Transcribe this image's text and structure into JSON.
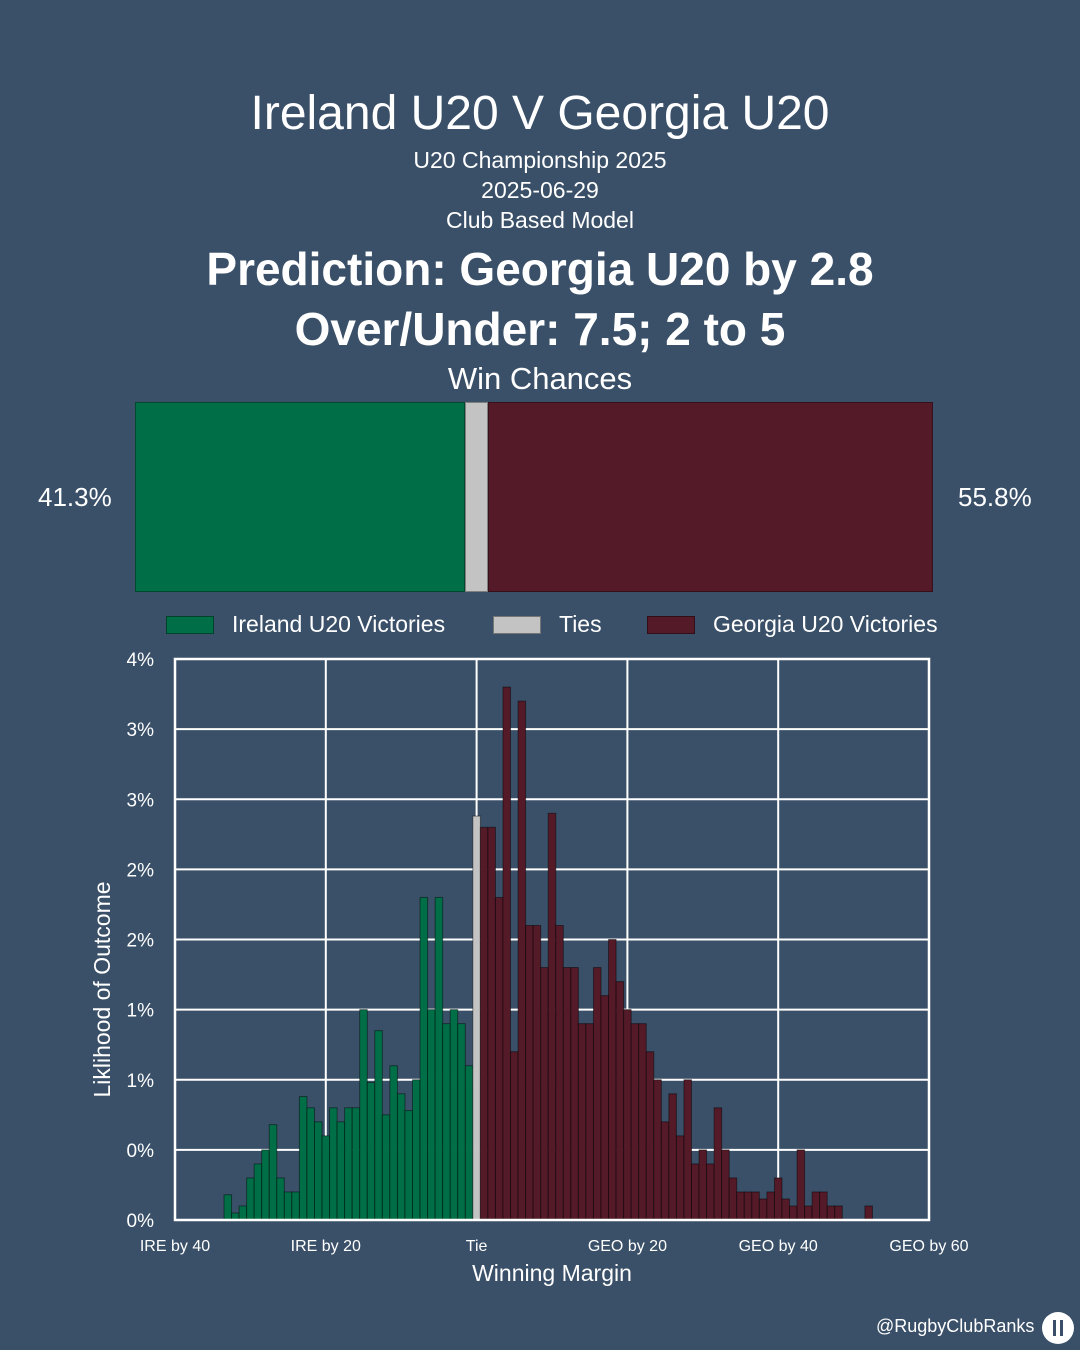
{
  "header": {
    "title": "Ireland U20 V Georgia U20",
    "competition": "U20 Championship 2025",
    "date": "2025-06-29",
    "model": "Club Based Model",
    "prediction": "Prediction: Georgia U20 by 2.8",
    "over_under": "Over/Under: 7.5; 2 to 5"
  },
  "win_chances": {
    "title": "Win Chances",
    "ireland_pct_label": "41.3%",
    "georgia_pct_label": "55.8%",
    "ireland": 41.3,
    "tie": 2.9,
    "georgia": 55.8
  },
  "legend": {
    "ireland": "Ireland U20 Victories",
    "tie": "Ties",
    "georgia": "Georgia U20 Victories"
  },
  "colors": {
    "background": "#3a5068",
    "ireland": "#006f47",
    "tie": "#c3c3c3",
    "georgia": "#541a28",
    "grid": "#ffffff"
  },
  "chart_data": {
    "type": "bar",
    "xlabel": "Winning Margin",
    "ylabel": "Liklihood of Outcome",
    "xlim": [
      -40,
      60
    ],
    "ylim": [
      0,
      4
    ],
    "x_ticks": [
      -40,
      -20,
      0,
      20,
      40,
      60
    ],
    "x_tick_labels": [
      "IRE by 40",
      "IRE by 20",
      "Tie",
      "GEO by 20",
      "GEO by 40",
      "GEO by 60"
    ],
    "y_ticks": [
      0,
      0.5,
      1,
      1.5,
      2,
      2.5,
      3,
      3.5,
      4
    ],
    "y_tick_labels": [
      "0%",
      "0%",
      "1%",
      "1%",
      "2%",
      "2%",
      "3%",
      "3%",
      "4%"
    ],
    "grid": true,
    "legend_position": "top",
    "series": [
      {
        "name": "Ireland U20 Victories",
        "x": [
          -33,
          -32,
          -31,
          -30,
          -29,
          -28,
          -27,
          -26,
          -25,
          -24,
          -23,
          -22,
          -21,
          -20,
          -19,
          -18,
          -17,
          -16,
          -15,
          -14,
          -13,
          -12,
          -11,
          -10,
          -9,
          -8,
          -7,
          -6,
          -5,
          -4,
          -3,
          -2,
          -1
        ],
        "values": [
          0.18,
          0.05,
          0.1,
          0.3,
          0.4,
          0.5,
          0.68,
          0.3,
          0.2,
          0.2,
          0.88,
          0.8,
          0.7,
          0.6,
          0.8,
          0.7,
          0.8,
          0.8,
          1.5,
          0.98,
          1.35,
          0.75,
          1.1,
          0.9,
          0.78,
          1.0,
          2.3,
          1.5,
          2.3,
          1.4,
          1.5,
          1.4,
          1.1
        ]
      },
      {
        "name": "Ties",
        "x": [
          0
        ],
        "values": [
          2.88
        ]
      },
      {
        "name": "Georgia U20 Victories",
        "x": [
          1,
          2,
          3,
          4,
          5,
          6,
          7,
          8,
          9,
          10,
          11,
          12,
          13,
          14,
          15,
          16,
          17,
          18,
          19,
          20,
          21,
          22,
          23,
          24,
          25,
          26,
          27,
          28,
          29,
          30,
          31,
          32,
          33,
          34,
          35,
          36,
          37,
          38,
          39,
          40,
          41,
          42,
          43,
          44,
          45,
          46,
          47,
          48,
          52
        ],
        "values": [
          2.8,
          2.8,
          2.3,
          3.8,
          1.2,
          3.7,
          2.1,
          2.1,
          1.8,
          2.9,
          2.1,
          1.8,
          1.8,
          1.4,
          1.4,
          1.8,
          1.6,
          2.0,
          1.7,
          1.5,
          1.4,
          1.4,
          1.2,
          1.0,
          0.7,
          0.9,
          0.6,
          1.0,
          0.4,
          0.5,
          0.4,
          0.8,
          0.5,
          0.3,
          0.2,
          0.2,
          0.2,
          0.15,
          0.2,
          0.3,
          0.15,
          0.1,
          0.5,
          0.1,
          0.2,
          0.2,
          0.1,
          0.1,
          0.1
        ]
      }
    ]
  },
  "footer": {
    "handle": "@RugbyClubRanks",
    "logo_icon": "goalposts-logo-icon"
  }
}
